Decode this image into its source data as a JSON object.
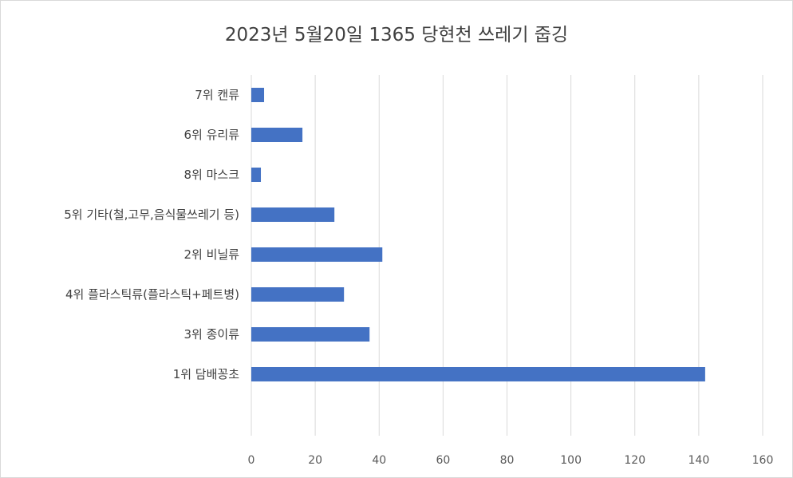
{
  "chart_data": {
    "type": "bar",
    "orientation": "horizontal",
    "title": "2023년 5월20일 1365 당현천 쓰레기 줍깅",
    "categories": [
      "7위 캔류",
      "6위 유리류",
      "8위 마스크",
      "5위 기타(철,고무,음식물쓰레기 등)",
      "2위 비닐류",
      "4위 플라스틱류(플라스틱+페트병)",
      "3위 종이류",
      "1위 담배꽁초"
    ],
    "values": [
      4,
      16,
      3,
      26,
      41,
      29,
      37,
      142
    ],
    "xlim": [
      0,
      160
    ],
    "xticks": [
      0,
      20,
      40,
      60,
      80,
      100,
      120,
      140,
      160
    ],
    "grid": true,
    "legend": "none",
    "bar_color": "#4472c4",
    "grid_color": "#d9d9d9"
  }
}
